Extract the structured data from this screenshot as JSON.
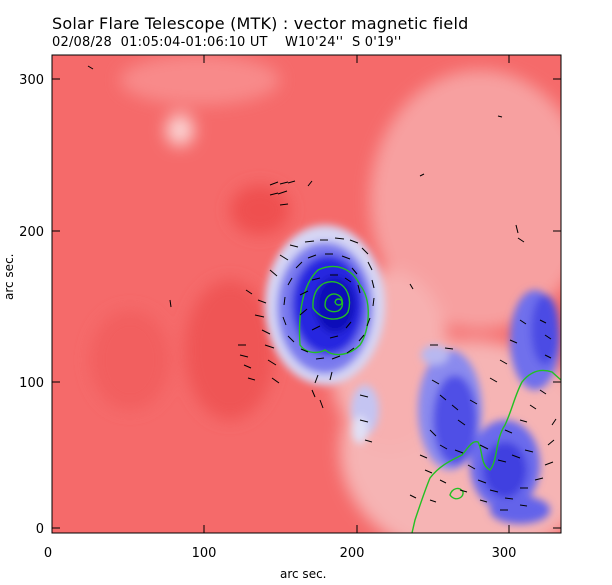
{
  "title": "Solar Flare Telescope (MTK) : vector magnetic field",
  "subtitle": "02/08/28  01:05:04-01:06:10 UT    W10'24''  S 0'19''",
  "xlabel": "arc sec.",
  "ylabel": "arc sec.",
  "axes": {
    "xlim": [
      0,
      338
    ],
    "ylim": [
      0,
      313
    ],
    "xticks": [
      "0",
      "100",
      "200",
      "300"
    ],
    "yticks": [
      "0",
      "100",
      "200",
      "300"
    ]
  },
  "colors": {
    "positive": "#f56a6a",
    "negative": "#3c3cf0",
    "contour": "#22c022",
    "vector": "#000000"
  }
}
